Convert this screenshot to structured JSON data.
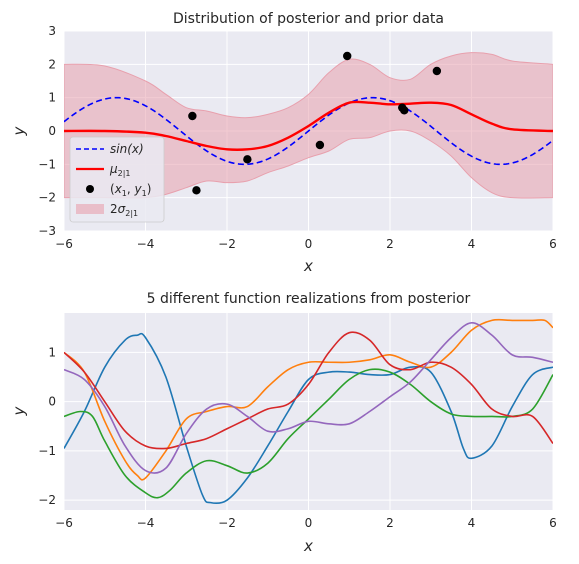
{
  "chart_data": [
    {
      "type": "line",
      "title": "Distribution of posterior and prior data",
      "xlabel": "x",
      "ylabel": "y",
      "xlim": [
        -6,
        6
      ],
      "ylim": [
        -3,
        3
      ],
      "xticks": [
        -6,
        -4,
        -2,
        0,
        2,
        4,
        6
      ],
      "yticks": [
        -3,
        -2,
        -1,
        0,
        1,
        2,
        3
      ],
      "xtick_labels": [
        "−6",
        "−4",
        "−2",
        "0",
        "2",
        "4",
        "6"
      ],
      "ytick_labels": [
        "−3",
        "−2",
        "−1",
        "0",
        "1",
        "2",
        "3"
      ],
      "grid": true,
      "legend_position": "lower-left",
      "legend": [
        {
          "label": "sin(x)",
          "style": "dashed",
          "color": "#0000ff"
        },
        {
          "label": "μ2|1",
          "style": "line",
          "color": "#ff0000"
        },
        {
          "label": "(x1, y1)",
          "style": "marker",
          "color": "#000000"
        },
        {
          "label": "2σ2|1",
          "style": "band",
          "color": "#e8a0ad"
        }
      ],
      "colors": {
        "sin": "#0000ff",
        "mean": "#ff0000",
        "points": "#000000",
        "band": "#e8a0ad",
        "background": "#eaeaf2"
      },
      "observations": {
        "x": [
          -2.85,
          -2.75,
          -1.5,
          0.28,
          0.95,
          2.3,
          2.35,
          3.15
        ],
        "y": [
          0.45,
          -1.78,
          -0.85,
          -0.42,
          2.25,
          0.7,
          0.62,
          1.8
        ]
      },
      "series": [
        {
          "name": "μ2|1",
          "x": [
            -6,
            -5,
            -4,
            -3.5,
            -3,
            -2.5,
            -2,
            -1.5,
            -1,
            -0.5,
            0,
            0.5,
            1,
            1.5,
            2,
            2.5,
            3,
            3.5,
            4,
            4.5,
            5,
            6
          ],
          "y": [
            0,
            0,
            -0.05,
            -0.15,
            -0.3,
            -0.45,
            -0.55,
            -0.55,
            -0.45,
            -0.2,
            0.15,
            0.55,
            0.85,
            0.85,
            0.8,
            0.82,
            0.85,
            0.78,
            0.5,
            0.22,
            0.05,
            0
          ]
        },
        {
          "name": "2σ2|1 upper",
          "x": [
            -6,
            -5,
            -4,
            -3.5,
            -3,
            -2.5,
            -2,
            -1.5,
            -1,
            -0.5,
            0,
            0.5,
            1,
            1.5,
            2,
            2.5,
            3,
            3.5,
            4,
            4.5,
            5,
            6
          ],
          "y": [
            2.0,
            1.95,
            1.5,
            1.1,
            0.7,
            0.6,
            0.45,
            0.4,
            0.5,
            0.7,
            1.1,
            1.75,
            2.15,
            2.0,
            1.6,
            1.55,
            2.0,
            2.25,
            2.35,
            2.3,
            2.1,
            2.0
          ]
        },
        {
          "name": "2σ2|1 lower",
          "x": [
            -6,
            -5,
            -4,
            -3.5,
            -3,
            -2.5,
            -2,
            -1.5,
            -1,
            -0.5,
            0,
            0.5,
            1,
            1.5,
            2,
            2.5,
            3,
            3.5,
            4,
            4.5,
            5,
            6
          ],
          "y": [
            -2.0,
            -2.0,
            -2.0,
            -1.9,
            -1.7,
            -1.5,
            -1.55,
            -1.5,
            -1.25,
            -1.05,
            -0.8,
            -0.6,
            -0.25,
            -0.2,
            0.0,
            0.0,
            -0.3,
            -0.75,
            -1.4,
            -1.85,
            -2.0,
            -2.0
          ]
        }
      ]
    },
    {
      "type": "line",
      "title": "5 different function realizations from posterior",
      "xlabel": "x",
      "ylabel": "y",
      "xlim": [
        -6,
        6
      ],
      "ylim": [
        -2.2,
        1.8
      ],
      "xticks": [
        -6,
        -4,
        -2,
        0,
        2,
        4,
        6
      ],
      "yticks": [
        -2,
        -1,
        0,
        1
      ],
      "xtick_labels": [
        "−6",
        "−4",
        "−2",
        "0",
        "2",
        "4",
        "6"
      ],
      "ytick_labels": [
        "−2",
        "−1",
        "0",
        "1"
      ],
      "grid": true,
      "series": [
        {
          "color": "#1f77b4",
          "x": [
            -6,
            -5.5,
            -5,
            -4.5,
            -4.2,
            -4,
            -3.5,
            -3,
            -2.6,
            -2.4,
            -2,
            -1.5,
            -1,
            -0.5,
            0,
            0.5,
            1,
            1.5,
            2,
            2.5,
            3,
            3.5,
            3.8,
            4,
            4.5,
            5,
            5.5,
            6
          ],
          "y": [
            -0.95,
            -0.2,
            0.7,
            1.25,
            1.35,
            1.3,
            0.5,
            -0.9,
            -1.9,
            -2.05,
            -2.0,
            -1.55,
            -0.9,
            -0.2,
            0.45,
            0.6,
            0.6,
            0.55,
            0.55,
            0.7,
            0.6,
            -0.2,
            -0.95,
            -1.15,
            -0.9,
            -0.1,
            0.55,
            0.7
          ]
        },
        {
          "color": "#ff7f0e",
          "x": [
            -6,
            -5.5,
            -5,
            -4.5,
            -4.2,
            -4,
            -3.5,
            -3,
            -2.5,
            -2,
            -1.5,
            -1,
            -0.5,
            0,
            0.5,
            1,
            1.5,
            2,
            2.5,
            3,
            3.5,
            4,
            4.5,
            5,
            5.5,
            5.8,
            6
          ],
          "y": [
            1.0,
            0.6,
            -0.4,
            -1.2,
            -1.5,
            -1.55,
            -1.0,
            -0.35,
            -0.2,
            -0.1,
            -0.1,
            0.3,
            0.65,
            0.8,
            0.8,
            0.8,
            0.85,
            0.95,
            0.8,
            0.7,
            1.0,
            1.45,
            1.65,
            1.65,
            1.65,
            1.65,
            1.5
          ]
        },
        {
          "color": "#2ca02c",
          "x": [
            -6,
            -5.6,
            -5.3,
            -5,
            -4.5,
            -4,
            -3.7,
            -3.4,
            -3,
            -2.5,
            -2,
            -1.5,
            -1,
            -0.5,
            0,
            0.5,
            1,
            1.5,
            2,
            2.5,
            3,
            3.5,
            4,
            4.5,
            5,
            5.5,
            6
          ],
          "y": [
            -0.3,
            -0.2,
            -0.3,
            -0.8,
            -1.5,
            -1.85,
            -1.95,
            -1.8,
            -1.45,
            -1.2,
            -1.3,
            -1.45,
            -1.25,
            -0.75,
            -0.35,
            0.05,
            0.45,
            0.65,
            0.6,
            0.35,
            0.0,
            -0.25,
            -0.3,
            -0.3,
            -0.3,
            -0.15,
            0.55
          ]
        },
        {
          "color": "#d62728",
          "x": [
            -6,
            -5.5,
            -5,
            -4.5,
            -4,
            -3.5,
            -3,
            -2.5,
            -2,
            -1.5,
            -1,
            -0.5,
            0,
            0.5,
            1,
            1.5,
            2,
            2.5,
            3,
            3.5,
            4,
            4.5,
            5,
            5.5,
            6
          ],
          "y": [
            1.0,
            0.6,
            0.0,
            -0.6,
            -0.9,
            -0.95,
            -0.85,
            -0.75,
            -0.55,
            -0.35,
            -0.15,
            -0.05,
            0.35,
            1.0,
            1.4,
            1.25,
            0.75,
            0.65,
            0.8,
            0.7,
            0.35,
            -0.15,
            -0.3,
            -0.3,
            -0.85
          ]
        },
        {
          "color": "#9467bd",
          "x": [
            -6,
            -5.5,
            -5,
            -4.5,
            -4,
            -3.5,
            -3,
            -2.5,
            -2,
            -1.5,
            -1,
            -0.5,
            0,
            0.5,
            1,
            1.5,
            2,
            2.5,
            3,
            3.5,
            4,
            4.5,
            5,
            5.5,
            6
          ],
          "y": [
            0.65,
            0.45,
            -0.1,
            -0.9,
            -1.4,
            -1.35,
            -0.65,
            -0.15,
            -0.05,
            -0.3,
            -0.6,
            -0.55,
            -0.4,
            -0.45,
            -0.45,
            -0.2,
            0.1,
            0.4,
            0.85,
            1.3,
            1.6,
            1.35,
            0.95,
            0.9,
            0.8
          ]
        }
      ]
    }
  ]
}
